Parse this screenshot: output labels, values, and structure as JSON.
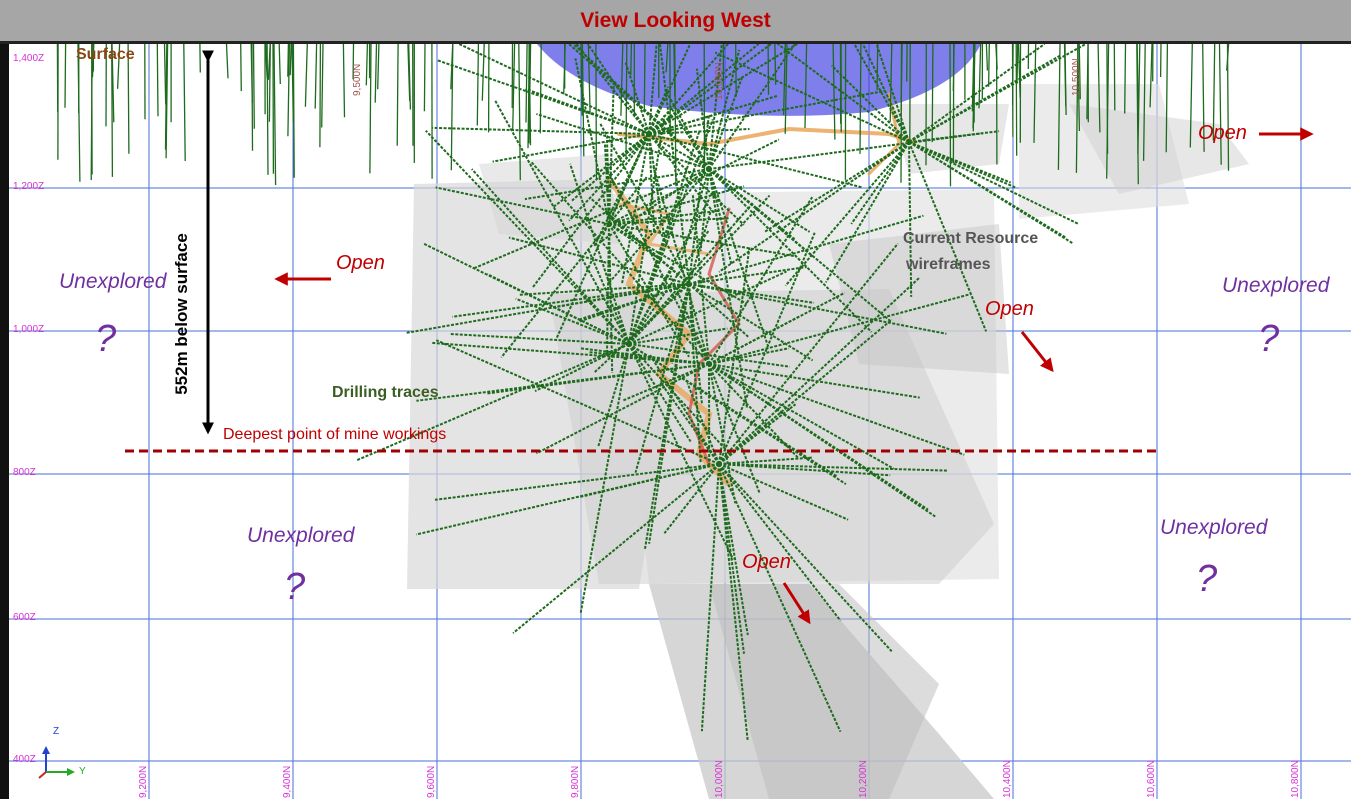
{
  "header": {
    "title": "View Looking West"
  },
  "grid": {
    "elevation_labels": [
      "1,400Z",
      "1,200Z",
      "1,000Z",
      "800Z",
      "600Z",
      "400Z"
    ],
    "northing_bottom_labels": [
      "9,200N",
      "9,400N",
      "9,600N",
      "9,800N",
      "10,000N",
      "10,200N",
      "10,400N",
      "10,600N",
      "10,800N"
    ],
    "northing_top_labels": [
      "9,500N",
      "10,000N",
      "10,500N"
    ]
  },
  "annotations": {
    "surface": "Surface",
    "depth_label": "552m below surface",
    "deepest_point": "Deepest point of mine workings",
    "drilling_traces": "Drilling traces",
    "resource_line1": "Current Resource",
    "resource_line2": "wireframes",
    "unexplored": [
      "Unexplored",
      "Unexplored",
      "Unexplored",
      "Unexplored"
    ],
    "question_mark": "?",
    "open": [
      "Open",
      "Open",
      "Open",
      "Open"
    ]
  },
  "axes_triad": {
    "z": "Z",
    "y": "Y"
  },
  "colors": {
    "title_text": "#c00000",
    "title_bar": "#a6a6a6",
    "grid_lines": "#4a6fd8",
    "grid_labels": "#d633d6",
    "drill_traces": "#1e6b1e",
    "workings": "#e8a050",
    "open_pit": "#3a3ae0",
    "arrows_open": "#c00000",
    "unexplored": "#7030a0",
    "deepest_line": "#a00000",
    "surface_label": "#8b4513",
    "drilling_label": "#3b5e23",
    "resource_label": "#555555"
  }
}
